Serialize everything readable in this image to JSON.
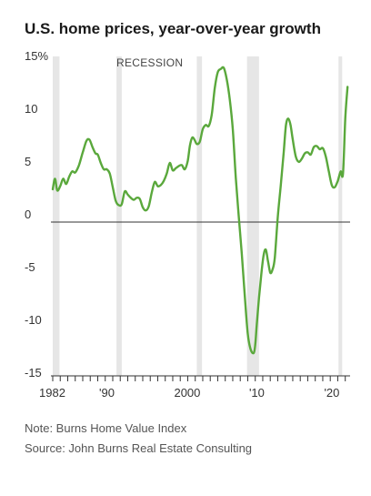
{
  "chart_data": {
    "type": "line",
    "title": "U.S. home prices, year-over-year growth",
    "xlabel": "",
    "ylabel": "",
    "xlim": [
      1982,
      2021.4
    ],
    "ylim": [
      -16,
      15
    ],
    "y_ticks": [
      {
        "value": 15,
        "label": "15%"
      },
      {
        "value": 10,
        "label": "10"
      },
      {
        "value": 5,
        "label": "5"
      },
      {
        "value": 0,
        "label": "0"
      },
      {
        "value": -5,
        "label": "-5"
      },
      {
        "value": -10,
        "label": "-10"
      },
      {
        "value": -15,
        "label": "-15"
      }
    ],
    "x_ticks": [
      {
        "value": 1982,
        "label": "1982"
      },
      {
        "value": 1990,
        "label": "'90"
      },
      {
        "value": 2000,
        "label": "2000"
      },
      {
        "value": 2010,
        "label": "'10"
      },
      {
        "value": 2020,
        "label": "'20"
      }
    ],
    "recession_label": "RECESSION",
    "recessions": [
      [
        1982.0,
        1982.9
      ],
      [
        1990.5,
        1991.2
      ],
      [
        2001.2,
        2001.9
      ],
      [
        2007.9,
        2009.5
      ],
      [
        2020.1,
        2020.5
      ]
    ],
    "grid": false,
    "line_color": "#5aa83c",
    "recession_color": "#e6e6e6",
    "series": [
      {
        "name": "",
        "x": [
          1982.0,
          1982.3,
          1982.6,
          1983.0,
          1983.4,
          1983.8,
          1984.2,
          1984.6,
          1985.0,
          1985.5,
          1986.0,
          1986.5,
          1986.9,
          1987.3,
          1987.7,
          1988.0,
          1988.4,
          1988.8,
          1989.2,
          1989.6,
          1990.0,
          1990.4,
          1990.8,
          1991.2,
          1991.6,
          1992.0,
          1992.4,
          1992.8,
          1993.2,
          1993.6,
          1994.0,
          1994.4,
          1994.8,
          1995.2,
          1995.6,
          1996.0,
          1996.4,
          1996.8,
          1997.2,
          1997.6,
          1998.0,
          1998.4,
          1998.8,
          1999.2,
          1999.6,
          2000.0,
          2000.3,
          2000.6,
          2000.9,
          2001.2,
          2001.6,
          2002.0,
          2002.4,
          2002.8,
          2003.2,
          2003.6,
          2004.0,
          2004.4,
          2004.8,
          2005.2,
          2005.6,
          2006.0,
          2006.4,
          2006.8,
          2007.2,
          2007.6,
          2008.0,
          2008.4,
          2008.8,
          2009.0,
          2009.2,
          2009.5,
          2009.8,
          2010.1,
          2010.4,
          2010.7,
          2011.0,
          2011.3,
          2011.6,
          2012.0,
          2012.4,
          2012.8,
          2013.1,
          2013.4,
          2013.7,
          2014.0,
          2014.4,
          2014.8,
          2015.2,
          2015.6,
          2016.0,
          2016.4,
          2016.8,
          2017.2,
          2017.6,
          2018.0,
          2018.4,
          2018.8,
          2019.2,
          2019.6,
          2020.0,
          2020.2,
          2020.4,
          2020.7,
          2021.0,
          2021.3
        ],
        "values": [
          3.1,
          4.1,
          3.0,
          3.4,
          4.1,
          3.6,
          4.3,
          4.8,
          4.7,
          5.4,
          6.6,
          7.7,
          7.8,
          7.1,
          6.5,
          6.4,
          5.6,
          5.0,
          5.0,
          4.6,
          3.3,
          2.0,
          1.6,
          1.7,
          2.9,
          2.6,
          2.3,
          2.1,
          2.3,
          2.2,
          1.4,
          1.1,
          1.5,
          2.8,
          3.8,
          3.4,
          3.5,
          3.9,
          4.6,
          5.6,
          4.9,
          5.1,
          5.3,
          5.4,
          5.0,
          5.8,
          7.3,
          8.0,
          7.8,
          7.4,
          7.6,
          8.8,
          9.2,
          9.1,
          10.2,
          12.7,
          14.2,
          14.5,
          14.6,
          13.5,
          11.6,
          8.8,
          4.2,
          0.5,
          -3.0,
          -7.0,
          -10.6,
          -12.1,
          -12.4,
          -11.6,
          -9.7,
          -7.2,
          -5.0,
          -3.2,
          -2.6,
          -3.7,
          -4.8,
          -4.5,
          -3.4,
          0.5,
          3.5,
          6.7,
          9.2,
          9.8,
          9.2,
          7.8,
          6.2,
          5.7,
          6.0,
          6.5,
          6.6,
          6.4,
          7.1,
          7.2,
          6.9,
          7.0,
          6.2,
          4.8,
          3.5,
          3.3,
          3.9,
          4.4,
          4.8,
          4.6,
          9.8,
          12.8
        ]
      }
    ]
  },
  "footer": {
    "note": "Note: Burns Home Value Index",
    "source": "Source: John Burns Real Estate Consulting"
  }
}
